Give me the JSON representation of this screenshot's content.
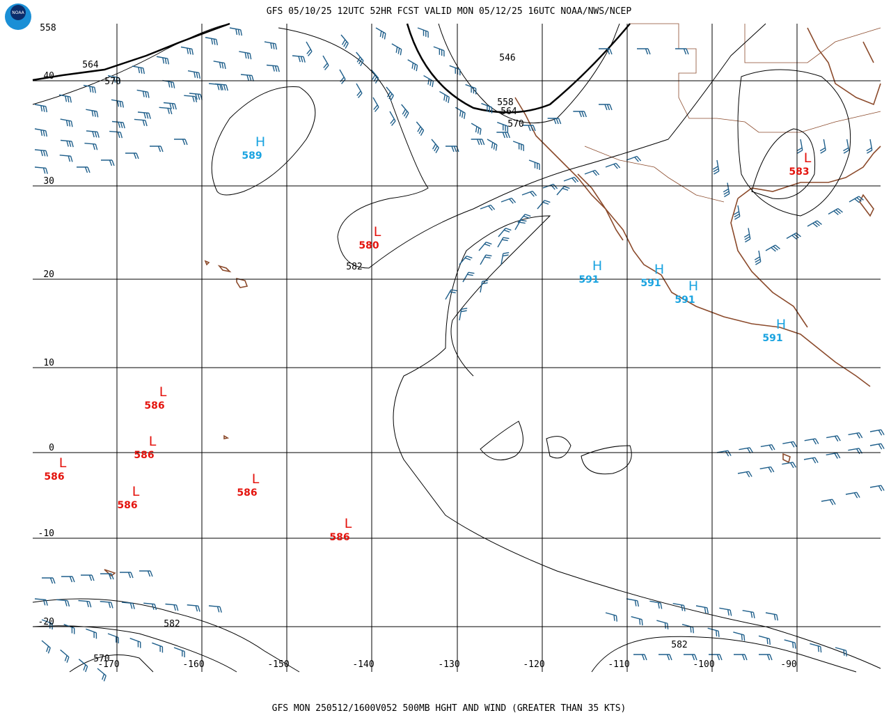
{
  "header": {
    "title": "GFS 05/10/25 12UTC 52HR FCST VALID MON 05/12/25 16UTC NOAA/NWS/NCEP"
  },
  "footer": {
    "caption": "GFS MON 250512/1600V052 500MB HGHT AND WIND (GREATER THAN 35 KTS)"
  },
  "logo": {
    "text": "NOAA"
  },
  "lat_labels": [
    40,
    30,
    20,
    10,
    0,
    -10,
    -20
  ],
  "lon_labels": [
    -170,
    -160,
    -150,
    -140,
    -130,
    -120,
    -110,
    -100,
    -90
  ],
  "contour_labels": [
    "558",
    "564",
    "570",
    "546",
    "558",
    "564",
    "570",
    "582",
    "582",
    "570",
    "582"
  ],
  "centers": [
    {
      "letter": "H",
      "value": "589"
    },
    {
      "letter": "L",
      "value": "580"
    },
    {
      "letter": "H",
      "value": "591"
    },
    {
      "letter": "H",
      "value": "591"
    },
    {
      "letter": "H",
      "value": "591"
    },
    {
      "letter": "H",
      "value": "591"
    },
    {
      "letter": "L",
      "value": "583"
    },
    {
      "letter": "L",
      "value": "586"
    },
    {
      "letter": "L",
      "value": "586"
    },
    {
      "letter": "L",
      "value": "586"
    },
    {
      "letter": "L",
      "value": "586"
    },
    {
      "letter": "L",
      "value": "586"
    },
    {
      "letter": "L",
      "value": "586"
    }
  ]
}
